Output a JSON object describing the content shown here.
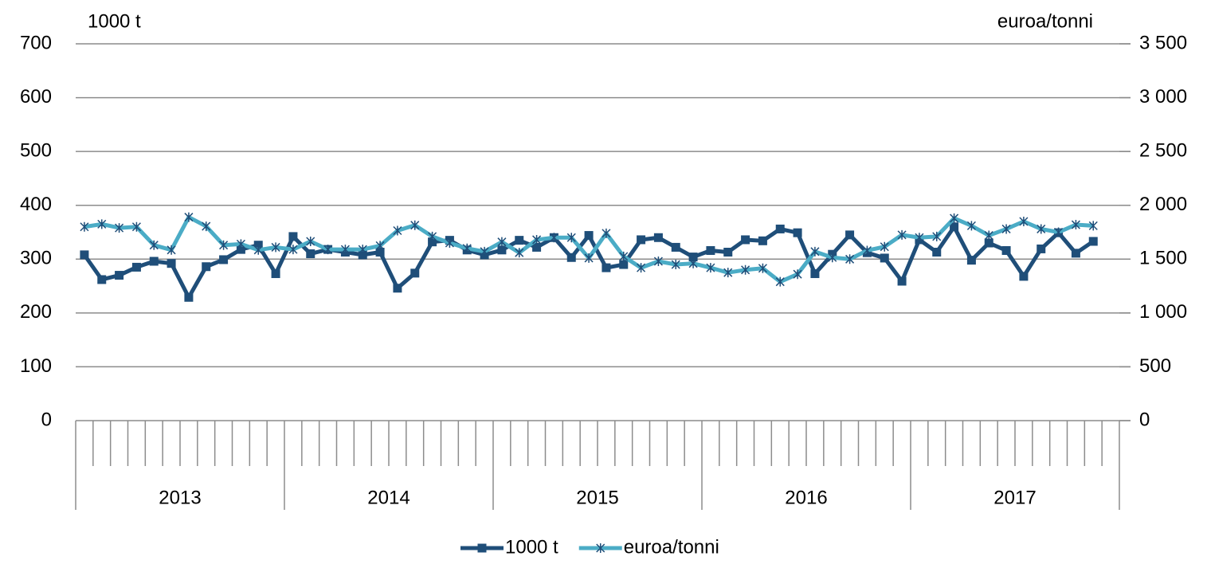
{
  "chart_data": {
    "type": "line",
    "y_label": "1000 t",
    "y2_label": "euroa/tonni",
    "years": [
      "2013",
      "2014",
      "2015",
      "2016",
      "2017"
    ],
    "series": [
      {
        "name": "1000 t",
        "color": "#1f4e79",
        "marker": "square",
        "values": [
          308,
          262,
          270,
          285,
          296,
          292,
          229,
          286,
          299,
          318,
          326,
          273,
          342,
          310,
          318,
          313,
          308,
          313,
          246,
          274,
          332,
          335,
          317,
          308,
          317,
          335,
          322,
          340,
          303,
          344,
          284,
          290,
          336,
          340,
          322,
          304,
          316,
          313,
          336,
          334,
          356,
          349,
          273,
          309,
          345,
          312,
          302,
          259,
          336,
          313,
          360,
          298,
          330,
          316,
          268,
          319,
          349,
          311,
          333,
          null
        ]
      },
      {
        "name": "euroa/tonni",
        "color": "#4bacc6",
        "marker": "star",
        "axis": "y2",
        "values": [
          1800,
          1825,
          1790,
          1800,
          1630,
          1585,
          1890,
          1805,
          1630,
          1640,
          1585,
          1610,
          1590,
          1665,
          1590,
          1590,
          1590,
          1625,
          1765,
          1815,
          1710,
          1650,
          1600,
          1570,
          1660,
          1560,
          1680,
          1700,
          1700,
          1510,
          1740,
          1525,
          1420,
          1480,
          1450,
          1460,
          1420,
          1375,
          1400,
          1415,
          1290,
          1360,
          1570,
          1515,
          1500,
          1580,
          1615,
          1725,
          1700,
          1710,
          1880,
          1810,
          1720,
          1780,
          1850,
          1780,
          1750,
          1820,
          1810,
          null
        ]
      }
    ],
    "ylim": [
      0,
      700
    ],
    "yticks": [
      0,
      100,
      200,
      300,
      400,
      500,
      600,
      700
    ],
    "y2lim": [
      0,
      3500
    ],
    "y2ticks": [
      0,
      500,
      {
        "value": 1000,
        "label": "1 000"
      },
      {
        "value": 1500,
        "label": "1 500"
      },
      {
        "value": 2000,
        "label": "2 000"
      },
      {
        "value": 2500,
        "label": "2 500"
      },
      {
        "value": 3000,
        "label": "3 000"
      },
      {
        "value": 3500,
        "label": "3 500"
      }
    ],
    "grid": true,
    "legend": "bottom"
  }
}
